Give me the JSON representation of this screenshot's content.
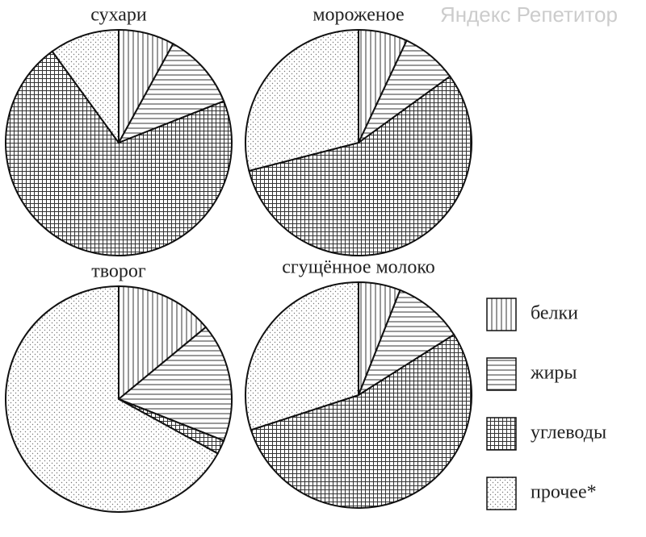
{
  "watermark": "Яндекс Репетитор",
  "chart_data": [
    {
      "type": "pie",
      "title": "сухари",
      "categories": [
        "белки",
        "жиры",
        "углеводы",
        "прочее*"
      ],
      "values": [
        8,
        11,
        71,
        10
      ],
      "patterns": [
        "vertical",
        "horizontal",
        "grid",
        "dots"
      ]
    },
    {
      "type": "pie",
      "title": "мороженое",
      "categories": [
        "белки",
        "жиры",
        "углеводы",
        "прочее*"
      ],
      "values": [
        7,
        8,
        56,
        29
      ],
      "patterns": [
        "vertical",
        "horizontal",
        "grid",
        "dots"
      ]
    },
    {
      "type": "pie",
      "title": "творог",
      "categories": [
        "белки",
        "жиры",
        "углеводы",
        "прочее*"
      ],
      "values": [
        14,
        17,
        2,
        67
      ],
      "patterns": [
        "vertical",
        "horizontal",
        "grid",
        "dots"
      ]
    },
    {
      "type": "pie",
      "title": "сгущённое молоко",
      "categories": [
        "белки",
        "жиры",
        "углеводы",
        "прочее*"
      ],
      "values": [
        6,
        10,
        54,
        30
      ],
      "patterns": [
        "vertical",
        "horizontal",
        "grid",
        "dots"
      ]
    }
  ]
}
